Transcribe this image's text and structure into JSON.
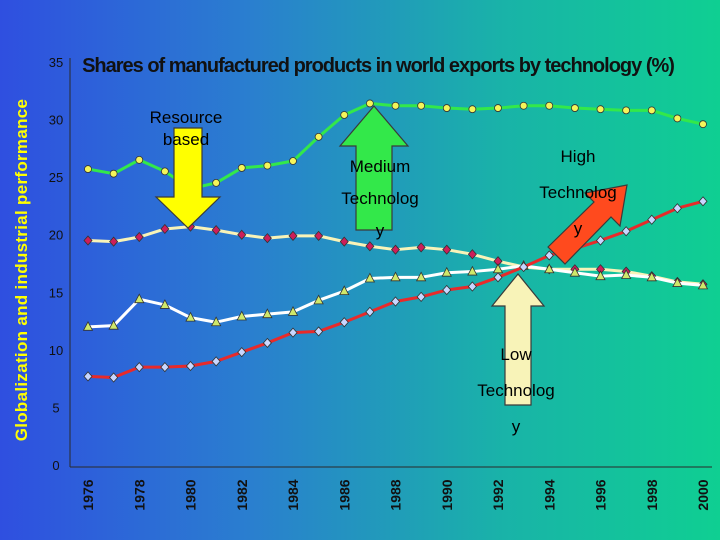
{
  "side_title": "Globalization and industrial performance",
  "chart_data": {
    "type": "line",
    "title": "Shares of manufactured products in world exports by technology (%)",
    "xlabel": "",
    "ylabel": "",
    "ylim": [
      0,
      35
    ],
    "xlim": [
      1976,
      2000
    ],
    "yticks": [
      "0",
      "5",
      "10",
      "15",
      "20",
      "25",
      "30",
      "35"
    ],
    "xticks": [
      "1976",
      "1978",
      "1980",
      "1982",
      "1984",
      "1986",
      "1988",
      "1990",
      "1992",
      "1994",
      "1996",
      "1998",
      "2000"
    ],
    "x": [
      1976,
      1977,
      1978,
      1979,
      1980,
      1981,
      1982,
      1983,
      1984,
      1985,
      1986,
      1987,
      1988,
      1989,
      1990,
      1991,
      1992,
      1993,
      1994,
      1995,
      1996,
      1997,
      1998,
      1999,
      2000
    ],
    "grid": false,
    "legend": "none",
    "series": [
      {
        "name": "",
        "color": "#33e84a",
        "marker": "circle",
        "marker_color": "#f5f55a",
        "values": [
          25.7,
          25.3,
          26.5,
          25.5,
          24.0,
          24.5,
          25.8,
          26.0,
          26.4,
          28.5,
          30.4,
          31.4,
          31.2,
          31.2,
          31.0,
          30.9,
          31.0,
          31.2,
          31.2,
          31.0,
          30.9,
          30.8,
          30.8,
          30.1,
          29.6
        ]
      },
      {
        "name": "",
        "color": "#f8f3b8",
        "marker": "diamond",
        "marker_color": "#cc1e5a",
        "values": [
          19.5,
          19.4,
          19.8,
          20.5,
          20.7,
          20.4,
          20.0,
          19.7,
          19.9,
          19.9,
          19.4,
          19.0,
          18.7,
          18.9,
          18.7,
          18.3,
          17.7,
          17.2,
          17.0,
          17.0,
          17.0,
          16.8,
          16.4,
          15.9,
          15.7
        ]
      },
      {
        "name": "",
        "color": "#ffffff",
        "marker": "triangle",
        "marker_color": "#cfe86a",
        "values": [
          12.0,
          12.1,
          14.4,
          13.9,
          12.8,
          12.4,
          12.9,
          13.1,
          13.3,
          14.3,
          15.1,
          16.2,
          16.3,
          16.3,
          16.7,
          16.8,
          17.0,
          17.3,
          17.0,
          16.7,
          16.4,
          16.5,
          16.3,
          15.8,
          15.6
        ]
      },
      {
        "name": "",
        "color": "#e82a2a",
        "marker": "diamond",
        "marker_color": "#c8d6ff",
        "values": [
          7.7,
          7.6,
          8.5,
          8.5,
          8.6,
          9.0,
          9.8,
          10.6,
          11.5,
          11.6,
          12.4,
          13.3,
          14.2,
          14.6,
          15.2,
          15.5,
          16.3,
          17.2,
          18.2,
          18.8,
          19.5,
          20.3,
          21.3,
          22.3,
          22.9
        ]
      }
    ],
    "annotations": [
      {
        "lines": [
          "Resource",
          "based"
        ],
        "arrow_color": "#ffff00"
      },
      {
        "lines": [
          "Medium",
          "Technolog",
          "y"
        ],
        "arrow_color": "#33e84a"
      },
      {
        "lines": [
          "High",
          "Technolog",
          "y"
        ],
        "arrow_color": "#ff4a1e"
      },
      {
        "lines": [
          "Low",
          "Technolog",
          "y"
        ],
        "arrow_color": "#f8f3b8"
      }
    ]
  }
}
